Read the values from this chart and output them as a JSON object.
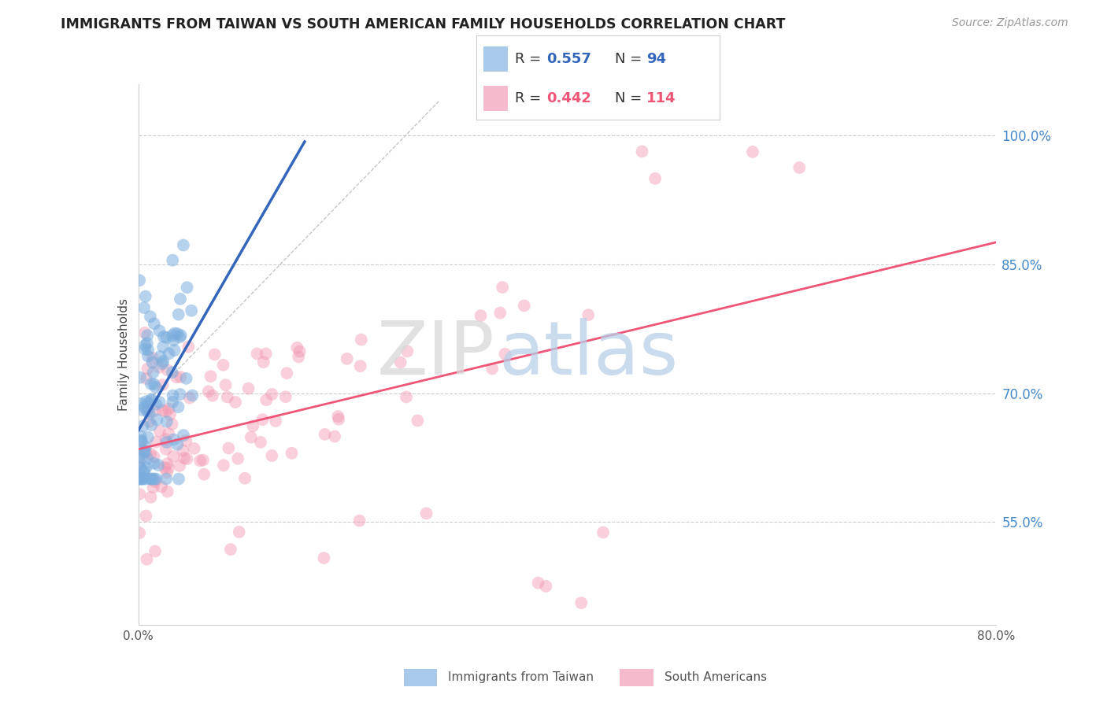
{
  "title": "IMMIGRANTS FROM TAIWAN VS SOUTH AMERICAN FAMILY HOUSEHOLDS CORRELATION CHART",
  "source": "Source: ZipAtlas.com",
  "ylabel": "Family Households",
  "xlim": [
    0.0,
    0.8
  ],
  "ylim": [
    0.43,
    1.06
  ],
  "yticks_right": [
    0.55,
    0.7,
    0.85,
    1.0
  ],
  "yticklabels_right": [
    "55.0%",
    "70.0%",
    "85.0%",
    "100.0%"
  ],
  "grid_color": "#cccccc",
  "background_color": "#ffffff",
  "blue_color": "#7aadde",
  "pink_color": "#f096b0",
  "blue_line_color": "#3366bb",
  "pink_line_color": "#ee5577",
  "legend_blue_r": "0.557",
  "legend_blue_n": "94",
  "legend_pink_r": "0.442",
  "legend_pink_n": "114",
  "legend_label_blue": "Immigrants from Taiwan",
  "legend_label_pink": "South Americans",
  "N_blue": 94,
  "N_pink": 114,
  "blue_scatter_seed": 7,
  "pink_scatter_seed": 13
}
